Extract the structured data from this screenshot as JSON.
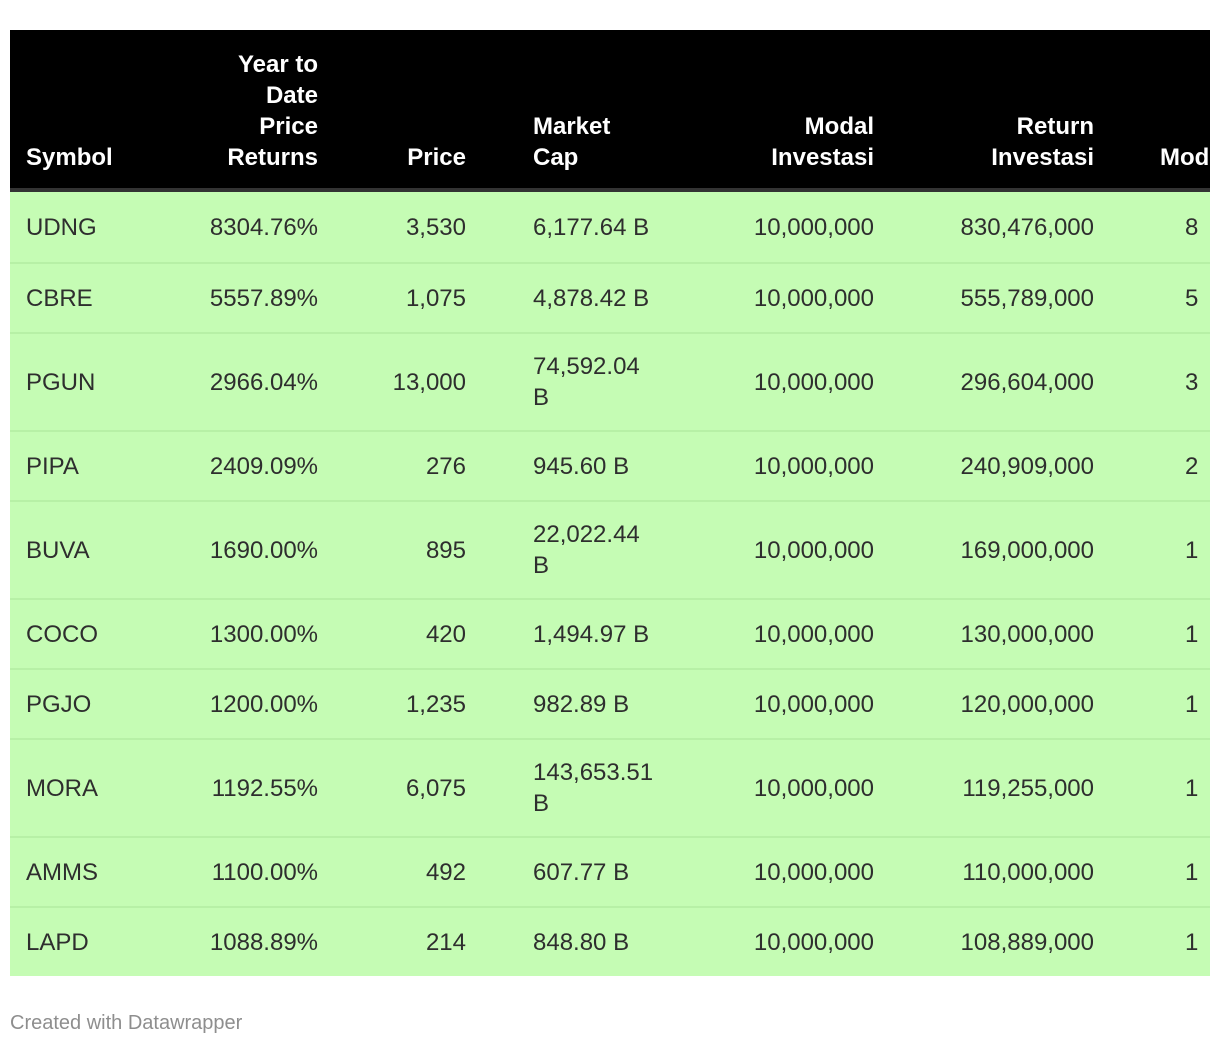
{
  "chart_data": {
    "type": "table",
    "columns": [
      {
        "id": "symbol",
        "label": "Symbol"
      },
      {
        "id": "ytd-price-returns",
        "label": "Year to\nDate\nPrice\nReturns"
      },
      {
        "id": "price",
        "label": "Price"
      },
      {
        "id": "market-cap",
        "label": "Market\nCap"
      },
      {
        "id": "modal-investasi",
        "label": "Modal\nInvestasi"
      },
      {
        "id": "return-investasi",
        "label": "Return\nInvestasi"
      },
      {
        "id": "modal-clipped",
        "label": "Mod",
        "clipped": true
      }
    ],
    "rows": [
      [
        "UDNG",
        "8304.76%",
        "3,530",
        "6,177.64 B",
        "10,000,000",
        "830,476,000",
        "8"
      ],
      [
        "CBRE",
        "5557.89%",
        "1,075",
        "4,878.42 B",
        "10,000,000",
        "555,789,000",
        "5"
      ],
      [
        "PGUN",
        "2966.04%",
        "13,000",
        "74,592.04\nB",
        "10,000,000",
        "296,604,000",
        "3"
      ],
      [
        "PIPA",
        "2409.09%",
        "276",
        "945.60 B",
        "10,000,000",
        "240,909,000",
        "2"
      ],
      [
        "BUVA",
        "1690.00%",
        "895",
        "22,022.44\nB",
        "10,000,000",
        "169,000,000",
        "1"
      ],
      [
        "COCO",
        "1300.00%",
        "420",
        "1,494.97 B",
        "10,000,000",
        "130,000,000",
        "1"
      ],
      [
        "PGJO",
        "1200.00%",
        "1,235",
        "982.89 B",
        "10,000,000",
        "120,000,000",
        "1"
      ],
      [
        "MORA",
        "1192.55%",
        "6,075",
        "143,653.51\nB",
        "10,000,000",
        "119,255,000",
        "1"
      ],
      [
        "AMMS",
        "1100.00%",
        "492",
        "607.77 B",
        "10,000,000",
        "110,000,000",
        "1"
      ],
      [
        "LAPD",
        "1088.89%",
        "214",
        "848.80 B",
        "10,000,000",
        "108,889,000",
        "1"
      ]
    ],
    "title": "",
    "legend_position": "none",
    "grid": "row-dividers"
  },
  "footer": {
    "attribution": "Created with Datawrapper"
  },
  "colors": {
    "page_bg": "#ffffff",
    "header_bg": "#000000",
    "header_text": "#ffffff",
    "header_border": "#333333",
    "row_bg": "#c5fcb4",
    "row_divider": "#b7f0a6",
    "cell_text": "#2e2e2e",
    "attribution_text": "#8e8e8e"
  }
}
